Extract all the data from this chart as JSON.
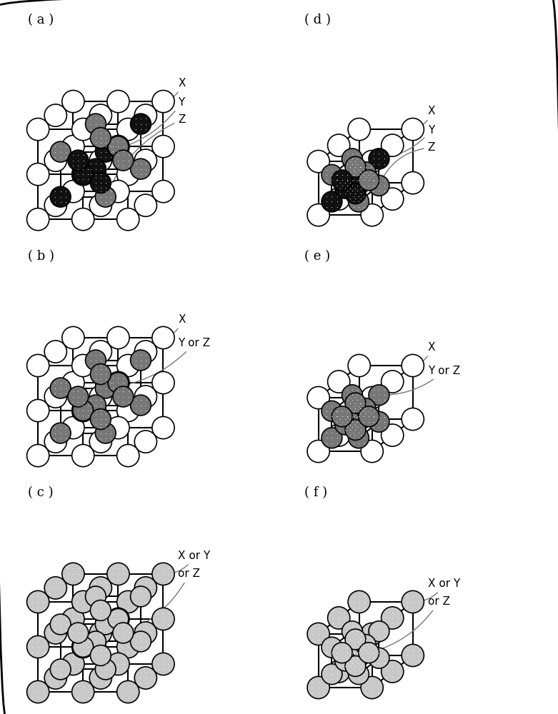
{
  "panels": [
    {
      "name": "a",
      "label": "( a )",
      "row": 0,
      "col": 0,
      "size": "large"
    },
    {
      "name": "d",
      "label": "( d )",
      "row": 0,
      "col": 1,
      "size": "small"
    },
    {
      "name": "b",
      "label": "( b )",
      "row": 1,
      "col": 0,
      "size": "large"
    },
    {
      "name": "e",
      "label": "( e )",
      "row": 1,
      "col": 1,
      "size": "small"
    },
    {
      "name": "c",
      "label": "( c )",
      "row": 2,
      "col": 0,
      "size": "large"
    },
    {
      "name": "f",
      "label": "( f )",
      "row": 2,
      "col": 1,
      "size": "small"
    }
  ],
  "large": {
    "ox": 0.3,
    "oy": 0.25,
    "s": 1.05,
    "pdx": 0.82,
    "pdy": 0.65,
    "rl": 0.26,
    "rs": 0.24,
    "lw": 1.5,
    "xlim": [
      -0.1,
      5.5
    ],
    "ylim": [
      -0.1,
      5.2
    ]
  },
  "small": {
    "ox": 0.4,
    "oy": 0.35,
    "s": 1.25,
    "pdx": 0.95,
    "pdy": 0.75,
    "rl": 0.26,
    "rs": 0.24,
    "lw": 1.5,
    "xlim": [
      -0.1,
      5.5
    ],
    "ylim": [
      -0.1,
      5.2
    ]
  },
  "colors": {
    "white_fc": "#ffffff",
    "dark_fc": "#111111",
    "medium_fc": "#777777",
    "light_fc": "#c8c8c8",
    "edge": "#000000",
    "arrow": "#777777",
    "bg": "#ffffff"
  },
  "label_fontsize": 13,
  "ann_fontsize": 11
}
